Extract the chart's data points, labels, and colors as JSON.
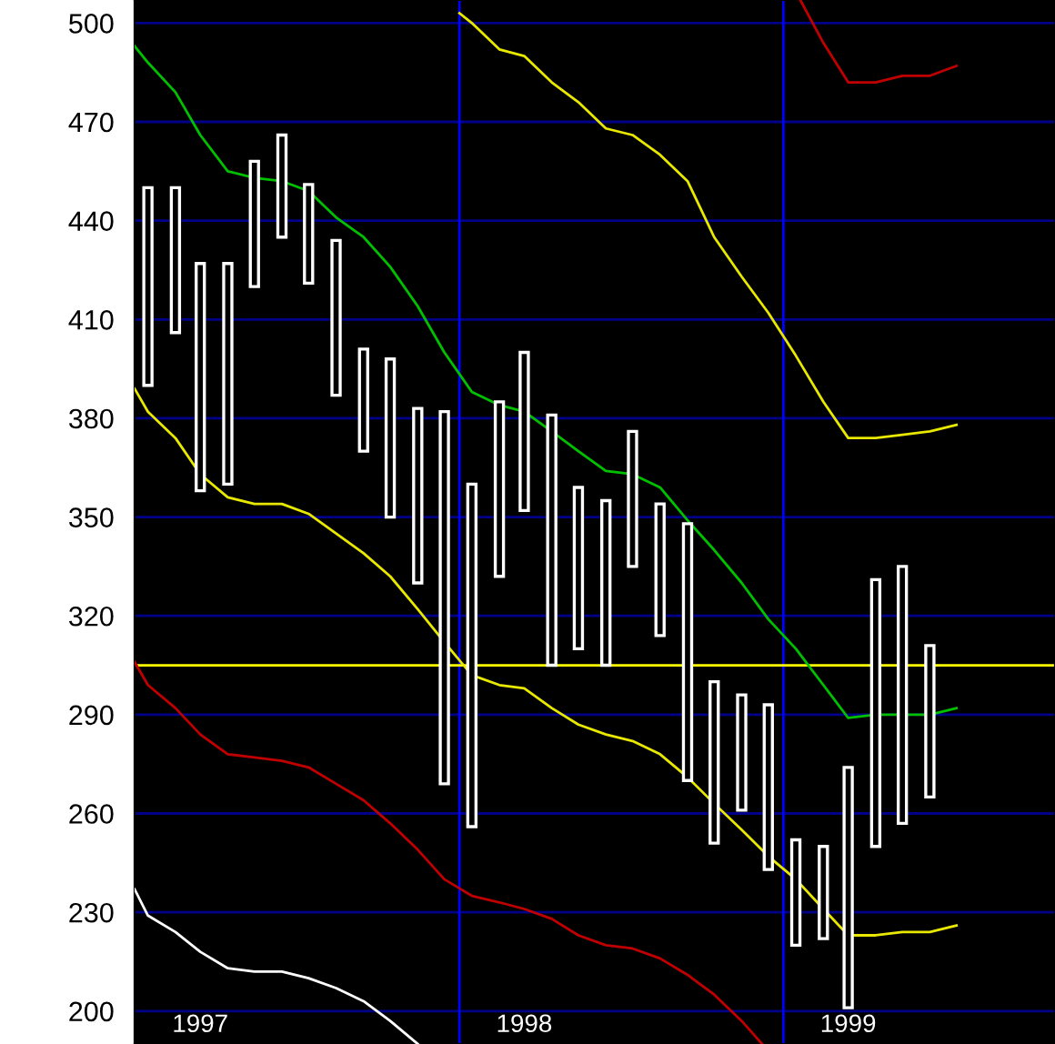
{
  "chart_data": {
    "type": "candlestick",
    "x": [
      "1997-01-15",
      "1997-02-15",
      "1997-03-15",
      "1997-04-15",
      "1997-05-15",
      "1997-06-15",
      "1997-07-15",
      "1997-08-15",
      "1997-09-15",
      "1997-10-15",
      "1997-11-15",
      "1997-12-15",
      "1998-01-15",
      "1998-02-15",
      "1998-03-15",
      "1998-04-15",
      "1998-05-15",
      "1998-06-15",
      "1998-07-15",
      "1998-08-15",
      "1998-09-15",
      "1998-10-15",
      "1998-11-15",
      "1998-12-15",
      "1999-01-15",
      "1999-02-15",
      "1999-03-15",
      "1999-04-15",
      "1999-05-15",
      "1999-06-15"
    ],
    "ohlc": [
      [
        390,
        450,
        390,
        450
      ],
      [
        406,
        450,
        406,
        450
      ],
      [
        358,
        427,
        358,
        427
      ],
      [
        360,
        427,
        360,
        427
      ],
      [
        420,
        458,
        420,
        458
      ],
      [
        435,
        466,
        435,
        466
      ],
      [
        421,
        451,
        421,
        451
      ],
      [
        387,
        434,
        387,
        434
      ],
      [
        370,
        401,
        370,
        401
      ],
      [
        350,
        398,
        350,
        398
      ],
      [
        330,
        383,
        330,
        383
      ],
      [
        269,
        382,
        269,
        382
      ],
      [
        256,
        360,
        256,
        360
      ],
      [
        332,
        385,
        332,
        385
      ],
      [
        352,
        400,
        352,
        400
      ],
      [
        305,
        381,
        305,
        381
      ],
      [
        310,
        359,
        310,
        359
      ],
      [
        305,
        355,
        305,
        355
      ],
      [
        335,
        376,
        335,
        376
      ],
      [
        314,
        354,
        314,
        354
      ],
      [
        270,
        348,
        270,
        348
      ],
      [
        251,
        300,
        251,
        300
      ],
      [
        261,
        296,
        261,
        296
      ],
      [
        243,
        293,
        243,
        293
      ],
      [
        220,
        252,
        220,
        252
      ],
      [
        222,
        250,
        222,
        250
      ],
      [
        201,
        274,
        201,
        274
      ],
      [
        250,
        331,
        250,
        331
      ],
      [
        257,
        335,
        257,
        335
      ],
      [
        265,
        311,
        265,
        311
      ]
    ],
    "color": "#ffffff",
    "series": [
      {
        "type": "line",
        "color": "#00c000",
        "x": [
          "1996-12-31",
          "1997-01-15",
          "1997-02-15",
          "1997-03-15",
          "1997-04-15",
          "1997-05-15",
          "1997-06-15",
          "1997-07-15",
          "1997-08-15",
          "1997-09-15",
          "1997-10-15",
          "1997-11-15",
          "1997-12-15",
          "1998-01-15",
          "1998-02-15",
          "1998-03-15",
          "1998-04-15",
          "1998-05-15",
          "1998-06-15",
          "1998-07-15",
          "1998-08-15",
          "1998-09-15",
          "1998-10-15",
          "1998-11-15",
          "1998-12-15",
          "1999-01-15",
          "1999-02-15",
          "1999-03-15",
          "1999-04-15",
          "1999-05-15",
          "1999-06-15",
          "1999-07-15"
        ],
        "values": [
          493,
          488,
          479,
          466,
          455,
          453,
          452,
          449,
          441,
          435,
          426,
          414,
          400,
          388,
          384,
          382,
          376,
          370,
          364,
          363,
          359,
          349,
          340,
          330,
          319,
          310,
          299,
          289,
          290,
          290,
          290,
          292
        ]
      },
      {
        "type": "line",
        "color": "#e8e800",
        "x": [
          "1996-12-31",
          "1997-01-15",
          "1997-02-15",
          "1997-03-15",
          "1997-04-15",
          "1997-05-15",
          "1997-06-15",
          "1997-07-15",
          "1997-08-15",
          "1997-09-15",
          "1997-10-15",
          "1997-11-15",
          "1997-12-15",
          "1998-01-15",
          "1998-02-15",
          "1998-03-15",
          "1998-04-15",
          "1998-05-15",
          "1998-06-15",
          "1998-07-15",
          "1998-08-15",
          "1998-09-15",
          "1998-10-15",
          "1998-11-15",
          "1998-12-15",
          "1999-01-15",
          "1999-02-15",
          "1999-03-15",
          "1999-04-15",
          "1999-05-15",
          "1999-06-15",
          "1999-07-15"
        ],
        "values": [
          389,
          382,
          374,
          363,
          356,
          354,
          354,
          351,
          345,
          339,
          332,
          322,
          312,
          302,
          299,
          298,
          292,
          287,
          284,
          282,
          278,
          271,
          263,
          255,
          247,
          240,
          231,
          223,
          223,
          224,
          224,
          226
        ]
      },
      {
        "type": "line",
        "color": "#e8e800",
        "x": [
          "1998-01-01",
          "1998-01-15",
          "1998-02-15",
          "1998-03-15",
          "1998-04-15",
          "1998-05-15",
          "1998-06-15",
          "1998-07-15",
          "1998-08-15",
          "1998-09-15",
          "1998-10-15",
          "1998-11-15",
          "1998-12-15",
          "1999-01-15",
          "1999-02-15",
          "1999-03-15",
          "1999-04-15",
          "1999-05-15",
          "1999-06-15",
          "1999-07-15"
        ],
        "values": [
          503,
          500,
          492,
          490,
          482,
          476,
          468,
          466,
          460,
          452,
          435,
          423,
          412,
          399,
          385,
          374,
          374,
          375,
          376,
          378
        ]
      },
      {
        "type": "line",
        "color": "#c00000",
        "x": [
          "1996-12-31",
          "1997-01-15",
          "1997-02-15",
          "1997-03-15",
          "1997-04-15",
          "1997-05-15",
          "1997-06-15",
          "1997-07-15",
          "1997-08-15",
          "1997-09-15",
          "1997-10-15",
          "1997-11-15",
          "1997-12-15",
          "1998-01-15",
          "1998-02-15",
          "1998-03-15",
          "1998-04-15",
          "1998-05-15",
          "1998-06-15",
          "1998-07-15",
          "1998-08-15",
          "1998-09-15",
          "1998-10-15",
          "1998-11-15",
          "1998-12-08"
        ],
        "values": [
          306,
          299,
          292,
          284,
          278,
          277,
          276,
          274,
          269,
          264,
          257,
          249,
          240,
          235,
          233,
          231,
          228,
          223,
          220,
          219,
          216,
          211,
          205,
          197,
          190
        ]
      },
      {
        "type": "line",
        "color": "#c00000",
        "x": [
          "1999-01-20",
          "1999-02-15",
          "1999-03-15",
          "1999-04-15",
          "1999-05-15",
          "1999-06-15",
          "1999-07-15"
        ],
        "values": [
          507,
          494,
          482,
          482,
          484,
          484,
          487
        ]
      },
      {
        "type": "line",
        "color": "#ffffff",
        "x": [
          "1996-12-31",
          "1997-01-15",
          "1997-02-15",
          "1997-03-15",
          "1997-04-15",
          "1997-05-15",
          "1997-06-15",
          "1997-07-15",
          "1997-08-15",
          "1997-09-15",
          "1997-10-15",
          "1997-11-15"
        ],
        "values": [
          237,
          229,
          224,
          218,
          213,
          212,
          212,
          210,
          207,
          203,
          197,
          190
        ]
      }
    ],
    "xlim": [
      "1996-12-31",
      "1999-11-03"
    ],
    "xticks": [
      {
        "value": "1997-03-15",
        "label": "1997"
      },
      {
        "value": "1998-03-15",
        "label": "1998"
      },
      {
        "value": "1999-03-15",
        "label": "1999"
      }
    ],
    "ylim": [
      190,
      507
    ],
    "yticks": [
      200,
      230,
      260,
      290,
      320,
      350,
      380,
      410,
      440,
      470,
      500
    ],
    "grid": "y",
    "ref_lines": [
      {
        "axis": "x",
        "value": "1998-01-01",
        "color": "#0000ff"
      },
      {
        "axis": "x",
        "value": "1999-01-01",
        "color": "#0000ff"
      },
      {
        "axis": "y",
        "value": 305,
        "color": "#ffff00"
      }
    ]
  }
}
